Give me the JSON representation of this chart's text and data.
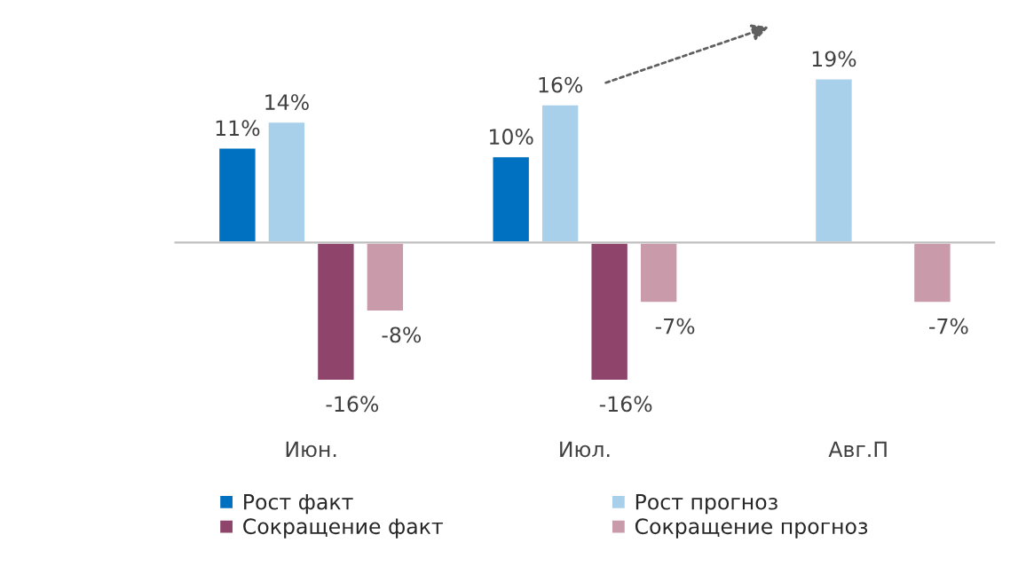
{
  "chart_data": {
    "type": "bar",
    "categories": [
      "Июн.",
      "Июл.",
      "Авг.П"
    ],
    "series": [
      {
        "name": "Рост факт",
        "color": "#0070c0",
        "values": [
          11,
          10,
          null
        ],
        "value_labels": [
          "11%",
          "10%",
          null
        ]
      },
      {
        "name": "Рост прогноз",
        "color": "#a9d0ea",
        "values": [
          14,
          16,
          19
        ],
        "value_labels": [
          "14%",
          "16%",
          "19%"
        ]
      },
      {
        "name": "Сокращение факт",
        "color": "#8e446b",
        "values": [
          -16,
          -16,
          null
        ],
        "value_labels": [
          "-16%",
          "-16%",
          null
        ]
      },
      {
        "name": "Сокращение прогноз",
        "color": "#c99aa9",
        "values": [
          -8,
          -7,
          -7
        ],
        "value_labels": [
          "-8%",
          "-7%",
          "-7%"
        ]
      }
    ],
    "legend": "bottom",
    "grid": false
  }
}
